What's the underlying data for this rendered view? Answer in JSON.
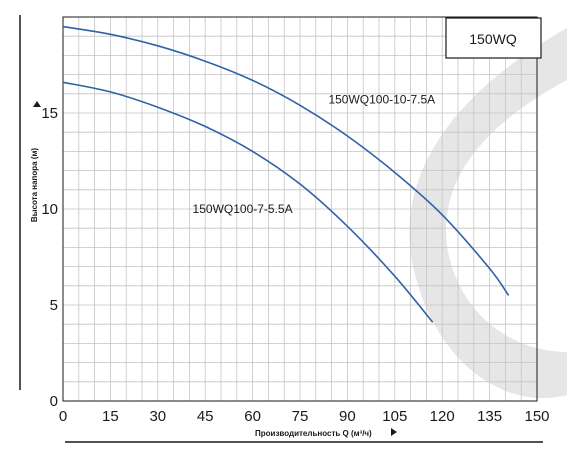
{
  "chart_data": {
    "type": "line",
    "title": "",
    "model_label": "150WQ",
    "xlabel": "Производительность Q (м³/ч)",
    "ylabel": "Высота напора (м)",
    "xlim": [
      0,
      150
    ],
    "ylim": [
      0,
      20
    ],
    "x_ticks": [
      "0",
      "15",
      "30",
      "45",
      "60",
      "75",
      "90",
      "105",
      "120",
      "135",
      "150"
    ],
    "y_ticks": [
      "0",
      "5",
      "10",
      "15"
    ],
    "grid": true,
    "line_color": "#2f62a8",
    "series": [
      {
        "name": "150WQ100-10-7.5A",
        "x": [
          0,
          15,
          30,
          45,
          60,
          75,
          90,
          105,
          120,
          135,
          141
        ],
        "y": [
          19.5,
          19.1,
          18.5,
          17.7,
          16.7,
          15.4,
          13.8,
          11.9,
          9.7,
          6.9,
          5.5
        ],
        "label_at": [
          84,
          15.5
        ]
      },
      {
        "name": "150WQ100-7-5.5A",
        "x": [
          0,
          15,
          30,
          45,
          60,
          75,
          90,
          105,
          117
        ],
        "y": [
          16.6,
          16.1,
          15.3,
          14.3,
          13.0,
          11.3,
          9.1,
          6.5,
          4.1
        ],
        "label_at": [
          41,
          9.8
        ]
      }
    ]
  }
}
